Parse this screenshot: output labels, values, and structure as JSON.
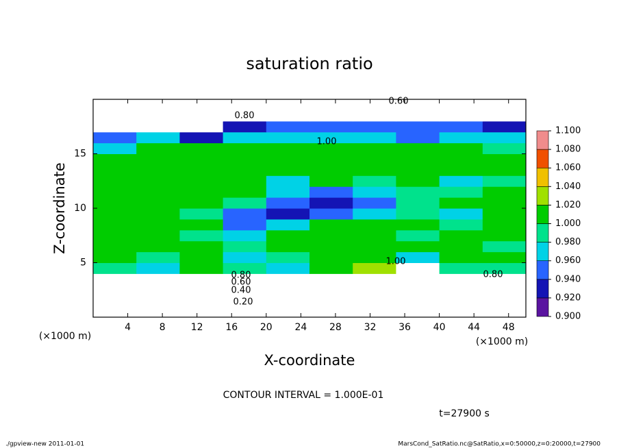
{
  "chart_data": {
    "type": "contour",
    "title": "saturation ratio",
    "x_label": "X-coordinate",
    "y_label": "Z-coordinate",
    "x_unit": "(×1000 m)",
    "y_unit": "(×1000 m)",
    "contour_interval": "CONTOUR INTERVAL = 1.000E-01",
    "time_label": "t=27900 s",
    "footer_left": "./gpview-new  2011-01-01",
    "footer_right": "MarsCond_SatRatio.nc@SatRatio,x=0:50000,z=0:20000,t=27900",
    "contour_labels": [
      "0.60",
      "0.80",
      "1.00",
      "1.00",
      "0.80",
      "0.80",
      "0.60",
      "0.40",
      "0.20"
    ],
    "xlim": [
      0,
      50
    ],
    "ylim": [
      0,
      20
    ],
    "xticks": [
      4,
      8,
      12,
      16,
      20,
      24,
      28,
      32,
      36,
      40,
      44,
      48
    ],
    "yticks": [
      5,
      10,
      15
    ],
    "x": [
      2.5,
      7.5,
      12.5,
      17.5,
      22.5,
      27.5,
      32.5,
      37.5,
      42.5,
      47.5
    ],
    "z": [
      0.5,
      1.5,
      2.5,
      3.5,
      4.5,
      5.5,
      6.5,
      7.5,
      8.5,
      9.5,
      10.5,
      11.5,
      12.5,
      13.5,
      14.5,
      15.5,
      16.5,
      17.5,
      18.5,
      19.5
    ],
    "values": [
      [
        0.05,
        0.05,
        0.05,
        0.05,
        0.05,
        0.05,
        0.05,
        0.05,
        0.05,
        0.05
      ],
      [
        0.2,
        0.2,
        0.2,
        0.2,
        0.2,
        0.2,
        0.2,
        0.2,
        0.2,
        0.2
      ],
      [
        0.45,
        0.45,
        0.45,
        0.45,
        0.45,
        0.45,
        0.45,
        0.45,
        0.45,
        0.45
      ],
      [
        0.75,
        0.75,
        0.75,
        0.75,
        0.75,
        0.75,
        0.75,
        0.75,
        0.75,
        0.75
      ],
      [
        0.99,
        0.97,
        1.01,
        0.98,
        0.97,
        1.01,
        1.02,
        0.85,
        0.99,
        0.98
      ],
      [
        1.0,
        0.98,
        1.0,
        0.96,
        0.98,
        1.0,
        1.0,
        0.97,
        1.0,
        1.0
      ],
      [
        1.0,
        1.0,
        1.0,
        0.98,
        1.0,
        1.0,
        1.0,
        1.0,
        1.0,
        0.99
      ],
      [
        1.0,
        1.0,
        0.99,
        0.97,
        1.0,
        1.0,
        1.0,
        0.99,
        1.0,
        1.0
      ],
      [
        1.0,
        1.0,
        1.0,
        0.95,
        0.96,
        1.0,
        1.0,
        1.0,
        0.98,
        1.0
      ],
      [
        1.0,
        1.0,
        0.98,
        0.94,
        0.93,
        0.94,
        0.97,
        0.98,
        0.97,
        1.0
      ],
      [
        1.0,
        1.0,
        1.0,
        0.98,
        0.94,
        0.92,
        0.95,
        0.98,
        1.0,
        1.0
      ],
      [
        1.0,
        1.0,
        1.0,
        1.0,
        0.97,
        0.94,
        0.96,
        0.98,
        0.98,
        1.0
      ],
      [
        1.0,
        1.0,
        1.0,
        1.0,
        0.96,
        1.0,
        0.98,
        1.0,
        0.97,
        0.98
      ],
      [
        1.0,
        1.0,
        1.0,
        1.0,
        1.0,
        1.0,
        1.0,
        1.0,
        1.0,
        1.0
      ],
      [
        1.0,
        1.0,
        1.0,
        1.0,
        1.0,
        1.0,
        1.0,
        1.0,
        1.0,
        1.0
      ],
      [
        0.97,
        1.0,
        1.0,
        1.0,
        1.0,
        1.0,
        1.0,
        1.0,
        1.0,
        0.98
      ],
      [
        0.95,
        0.96,
        0.93,
        0.96,
        0.97,
        0.96,
        0.96,
        0.95,
        0.96,
        0.96
      ],
      [
        0.8,
        0.8,
        0.85,
        0.92,
        0.94,
        0.94,
        0.95,
        0.94,
        0.94,
        0.93
      ],
      [
        0.75,
        0.75,
        0.75,
        0.75,
        0.75,
        0.75,
        0.75,
        0.75,
        0.75,
        0.75
      ],
      [
        0.6,
        0.6,
        0.6,
        0.6,
        0.6,
        0.6,
        0.6,
        0.6,
        0.6,
        0.6
      ]
    ],
    "levels": [
      {
        "value": 0.9,
        "label": "0.900"
      },
      {
        "value": 0.92,
        "label": "0.920"
      },
      {
        "value": 0.94,
        "label": "0.940"
      },
      {
        "value": 0.96,
        "label": "0.960"
      },
      {
        "value": 0.98,
        "label": "0.980"
      },
      {
        "value": 1.0,
        "label": "1.000"
      },
      {
        "value": 1.02,
        "label": "1.020"
      },
      {
        "value": 1.04,
        "label": "1.040"
      },
      {
        "value": 1.06,
        "label": "1.060"
      },
      {
        "value": 1.08,
        "label": "1.080"
      },
      {
        "value": 1.1,
        "label": "1.100"
      }
    ],
    "colors": [
      "#5a14a0",
      "#1414b4",
      "#2864ff",
      "#00d2e6",
      "#00e28c",
      "#00cc00",
      "#a0e000",
      "#f0c000",
      "#f05000",
      "#f08c8c"
    ],
    "out_of_range_color": "#ffffff"
  }
}
